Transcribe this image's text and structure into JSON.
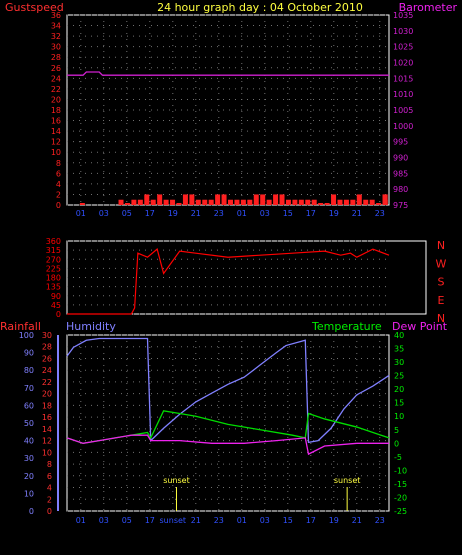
{
  "header": {
    "left": "Gustspeed",
    "title": "24 hour graph day : 04 October 2010",
    "right": "Barometer"
  },
  "colors": {
    "background": "#000000",
    "frame": "#ffffff",
    "grid": "#707070",
    "gust": "#ff2020",
    "average": "#00c000",
    "average2": "#3050ff",
    "barometer": "#d020d0",
    "direction": "#ff0000",
    "humidity": "#8080ff",
    "temperature": "#00dd00",
    "dewpoint": "#ee22ee",
    "rain_axis": "#ff3030",
    "temp_axis": "#00ee00",
    "dew_axis": "#ee22ee",
    "title": "#ffff40",
    "time_tick": "#3050ff",
    "sunset": "#ffff40",
    "wind_dir_labels": "#ff2020"
  },
  "chart_data": [
    {
      "type": "bar",
      "panel": "wind",
      "title": "24 hour graph day : 04 October 2010",
      "time_ticks": [
        "01",
        "03",
        "05",
        "17",
        "19",
        "21",
        "23",
        "01",
        "03",
        "15",
        "17",
        "19",
        "21",
        "23"
      ],
      "left_axis": {
        "label": "Gustspeed",
        "ticks": [
          0,
          2,
          4,
          6,
          8,
          10,
          12,
          14,
          16,
          18,
          20,
          22,
          24,
          26,
          28,
          30,
          32,
          34,
          36
        ],
        "ylim": [
          0,
          36
        ]
      },
      "right_axis": {
        "label": "Barometer",
        "ticks": [
          975,
          980,
          985,
          990,
          995,
          1000,
          1005,
          1010,
          1015,
          1020,
          1025,
          1030,
          1035
        ],
        "ylim": [
          975,
          1035
        ]
      },
      "series": [
        {
          "name": "Gustspeed",
          "kind": "bars",
          "x": [
            0.04,
            0.16,
            0.18,
            0.2,
            0.22,
            0.24,
            0.26,
            0.28,
            0.3,
            0.32,
            0.34,
            0.36,
            0.38,
            0.4,
            0.42,
            0.44,
            0.46,
            0.48,
            0.5,
            0.52,
            0.54,
            0.56,
            0.58,
            0.6,
            0.62,
            0.64,
            0.66,
            0.68,
            0.7,
            0.72,
            0.74,
            0.76,
            0.78,
            0.8,
            0.82,
            0.84,
            0.86,
            0.88,
            0.9,
            0.92,
            0.94,
            0.96,
            0.98,
            1.0,
            1.02,
            1.04,
            1.06,
            1.08,
            1.1
          ],
          "values": [
            0,
            1,
            0,
            1,
            1,
            2,
            1,
            2,
            1,
            1,
            0,
            2,
            2,
            1,
            1,
            1,
            2,
            2,
            1,
            1,
            1,
            1,
            2,
            2,
            1,
            2,
            2,
            1,
            1,
            1,
            1,
            1,
            0,
            0,
            2,
            1,
            1,
            1,
            2,
            1,
            1,
            0,
            2,
            2,
            1,
            1,
            2,
            1,
            1
          ]
        },
        {
          "name": "Barometer",
          "kind": "line",
          "x": [
            0,
            0.05,
            0.06,
            0.1,
            0.11,
            0.17,
            0.2,
            0.24,
            0.25,
            0.3,
            0.36,
            0.4,
            0.5,
            0.6,
            0.7,
            0.72,
            0.8,
            0.85,
            0.9,
            0.96,
            1.0
          ],
          "values": [
            1016,
            1016,
            1017,
            1017,
            1016,
            1016,
            1016,
            1016,
            1016,
            1016,
            1016,
            1016,
            1016,
            1016,
            1016,
            1016,
            1016,
            1016,
            1016,
            1016,
            1016
          ]
        }
      ]
    },
    {
      "type": "line",
      "panel": "direction",
      "left_axis": {
        "ticks": [
          0,
          45,
          90,
          135,
          180,
          225,
          270,
          315,
          360
        ],
        "ylim": [
          0,
          360
        ]
      },
      "right_labels": [
        "N",
        "W",
        "S",
        "E",
        "N"
      ],
      "series": [
        {
          "name": "Wind direction",
          "x": [
            0.0,
            0.1,
            0.2,
            0.21,
            0.22,
            0.25,
            0.28,
            0.3,
            0.35,
            0.4,
            0.5,
            0.6,
            0.7,
            0.8,
            0.85,
            0.88,
            0.9,
            0.95,
            1.0
          ],
          "values": [
            0,
            0,
            0,
            30,
            300,
            280,
            320,
            200,
            310,
            300,
            280,
            290,
            300,
            310,
            290,
            300,
            280,
            320,
            290
          ]
        }
      ]
    },
    {
      "type": "line",
      "panel": "weather",
      "time_ticks": [
        "01",
        "03",
        "05",
        "17",
        "sunset",
        "21",
        "23",
        "01",
        "03",
        "15",
        "17",
        "19",
        "21",
        "23"
      ],
      "left_axes": [
        {
          "label": "Rainfall",
          "ticks": [
            0,
            2,
            4,
            6,
            8,
            10,
            12,
            14,
            16,
            18,
            20,
            22,
            24,
            26,
            28,
            30
          ]
        },
        {
          "label": "Humidity",
          "ticks": [
            0,
            10,
            20,
            30,
            40,
            50,
            60,
            70,
            80,
            90,
            100
          ]
        }
      ],
      "right_axes": [
        {
          "label": "Temperature",
          "ticks": [
            -25,
            -20,
            -15,
            -10,
            -5,
            0,
            5,
            10,
            15,
            20,
            25,
            30,
            35,
            40
          ]
        },
        {
          "label": "Dew Point",
          "ticks": [
            -25,
            -20,
            -15,
            -10,
            -5,
            0,
            5,
            10,
            15,
            20,
            25,
            30,
            35,
            40
          ]
        }
      ],
      "annotations": [
        {
          "label": "sunset",
          "x": 0.34
        },
        {
          "label": "sunset",
          "x": 0.87
        }
      ],
      "series": [
        {
          "name": "Humidity",
          "x": [
            0.0,
            0.02,
            0.06,
            0.1,
            0.2,
            0.25,
            0.26,
            0.3,
            0.35,
            0.4,
            0.45,
            0.5,
            0.55,
            0.6,
            0.65,
            0.68,
            0.72,
            0.74,
            0.75,
            0.78,
            0.82,
            0.86,
            0.9,
            0.95,
            1.0
          ],
          "values": [
            88,
            93,
            97,
            98,
            98,
            98,
            40,
            47,
            55,
            62,
            67,
            72,
            76,
            83,
            90,
            94,
            96,
            97,
            39,
            40,
            47,
            58,
            66,
            71,
            77
          ]
        },
        {
          "name": "Temperature",
          "x": [
            0.0,
            0.05,
            0.1,
            0.15,
            0.2,
            0.25,
            0.26,
            0.3,
            0.35,
            0.4,
            0.5,
            0.6,
            0.7,
            0.74,
            0.75,
            0.8,
            0.9,
            1.0
          ],
          "values": [
            2,
            0,
            1,
            2,
            3,
            4,
            2,
            12,
            11,
            10,
            7,
            5,
            3,
            2,
            11,
            9,
            6,
            2
          ]
        },
        {
          "name": "Dew Point",
          "x": [
            0.0,
            0.05,
            0.1,
            0.15,
            0.2,
            0.25,
            0.26,
            0.35,
            0.45,
            0.55,
            0.65,
            0.74,
            0.75,
            0.8,
            0.9,
            1.0
          ],
          "values": [
            2,
            0,
            1,
            2,
            3,
            3,
            1,
            1,
            0,
            0,
            1,
            2,
            -4,
            -1,
            0,
            0
          ]
        }
      ]
    }
  ]
}
